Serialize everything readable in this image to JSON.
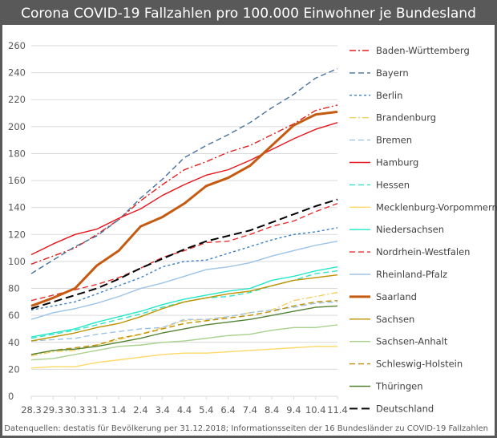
{
  "chart_data": {
    "type": "line",
    "title": "Corona COVID-19 Fallzahlen pro 100.000 Einwohner je Bundesland",
    "source": "Datenquellen: destatis für Bevölkerung per 31.12.2018; Informationsseiten der 16 Bundesländer zu COVID-19 Fallzahlen",
    "xlabel": "",
    "ylabel": "",
    "ylim": [
      0,
      260
    ],
    "yticks": [
      "0",
      "20",
      "40",
      "60",
      "80",
      "100",
      "120",
      "140",
      "160",
      "180",
      "200",
      "220",
      "240",
      "260"
    ],
    "grid": true,
    "legend": "right",
    "categories": [
      "28.3",
      "29.3",
      "30.3",
      "31.3",
      "1.4",
      "2.4",
      "3.4",
      "4.4",
      "5.4",
      "6.4",
      "7.4",
      "8.4",
      "9.4",
      "10.4",
      "11.4"
    ],
    "series": [
      {
        "name": "Baden-Württemberg",
        "color": "#e02020",
        "style": "dashdot",
        "values": [
          98,
          104,
          110,
          120,
          131,
          145,
          157,
          168,
          174,
          181,
          186,
          194,
          202,
          212,
          216
        ]
      },
      {
        "name": "Bayern",
        "color": "#44709c",
        "style": "dash",
        "values": [
          91,
          101,
          111,
          119,
          131,
          147,
          161,
          177,
          186,
          194,
          203,
          214,
          224,
          236,
          243
        ]
      },
      {
        "name": "Berlin",
        "color": "#3a7fc1",
        "style": "shortdash",
        "values": [
          64,
          67,
          70,
          76,
          82,
          88,
          96,
          100,
          101,
          106,
          111,
          116,
          120,
          122,
          125
        ]
      },
      {
        "name": "Brandenburg",
        "color": "#f5d060",
        "style": "dashdot",
        "values": [
          30,
          33,
          34,
          38,
          42,
          46,
          51,
          56,
          57,
          59,
          62,
          64,
          71,
          74,
          77
        ]
      },
      {
        "name": "Bremen",
        "color": "#9cc3e6",
        "style": "dash",
        "values": [
          41,
          42,
          43,
          46,
          48,
          50,
          51,
          57,
          57,
          59,
          62,
          64,
          66,
          69,
          70
        ]
      },
      {
        "name": "Hamburg",
        "color": "#e8141c",
        "style": "solid",
        "values": [
          105,
          113,
          120,
          124,
          132,
          139,
          149,
          157,
          164,
          168,
          175,
          183,
          191,
          198,
          203
        ]
      },
      {
        "name": "Hessen",
        "color": "#2ee6c8",
        "style": "dash",
        "values": [
          43,
          46,
          49,
          53,
          57,
          61,
          66,
          70,
          73,
          74,
          77,
          82,
          86,
          91,
          93
        ]
      },
      {
        "name": "Mecklenburg-Vorpommern",
        "color": "#ffd966",
        "style": "solid",
        "values": [
          21,
          22,
          22,
          25,
          27,
          29,
          31,
          32,
          32,
          33,
          34,
          35,
          36,
          37,
          37
        ]
      },
      {
        "name": "Niedersachsen",
        "color": "#20e8c8",
        "style": "solid",
        "values": [
          44,
          47,
          50,
          55,
          59,
          63,
          68,
          72,
          75,
          78,
          80,
          86,
          89,
          93,
          96
        ]
      },
      {
        "name": "Nordrhein-Westfalen",
        "color": "#e83030",
        "style": "dash",
        "values": [
          71,
          75,
          79,
          83,
          88,
          95,
          103,
          108,
          114,
          115,
          120,
          126,
          130,
          137,
          143
        ]
      },
      {
        "name": "Rheinland-Pfalz",
        "color": "#9dc3e6",
        "style": "solid",
        "values": [
          57,
          62,
          65,
          69,
          74,
          80,
          84,
          89,
          94,
          96,
          99,
          104,
          108,
          112,
          115
        ]
      },
      {
        "name": "Saarland",
        "color": "#c55a11",
        "style": "thick",
        "values": [
          67,
          73,
          80,
          97,
          108,
          126,
          133,
          143,
          156,
          162,
          171,
          186,
          201,
          209,
          211
        ]
      },
      {
        "name": "Sachsen",
        "color": "#bf9000",
        "style": "solid",
        "values": [
          41,
          44,
          47,
          51,
          54,
          59,
          65,
          70,
          73,
          76,
          78,
          82,
          86,
          88,
          90
        ]
      },
      {
        "name": "Sachsen-Anhalt",
        "color": "#a9d18e",
        "style": "solid",
        "values": [
          27,
          28,
          31,
          34,
          37,
          38,
          40,
          41,
          43,
          45,
          46,
          49,
          51,
          51,
          53
        ]
      },
      {
        "name": "Schleswig-Holstein",
        "color": "#bf9000",
        "style": "dash",
        "values": [
          31,
          34,
          36,
          38,
          43,
          46,
          50,
          54,
          56,
          58,
          60,
          63,
          67,
          70,
          71
        ]
      },
      {
        "name": "Thüringen",
        "color": "#548235",
        "style": "solid",
        "values": [
          31,
          34,
          35,
          37,
          40,
          43,
          47,
          50,
          53,
          55,
          57,
          60,
          63,
          66,
          67
        ]
      },
      {
        "name": "Deutschland",
        "color": "#000000",
        "style": "longdash",
        "values": [
          65,
          70,
          75,
          80,
          87,
          95,
          102,
          109,
          115,
          119,
          123,
          129,
          135,
          141,
          146
        ]
      }
    ]
  }
}
